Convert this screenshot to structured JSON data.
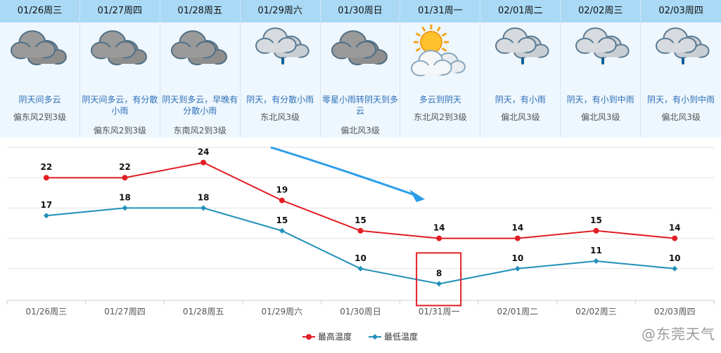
{
  "forecast": [
    {
      "date": "01/26周三",
      "desc": "阴天间多云",
      "wind": "偏东风2到3级",
      "icon": "cloudy-icon"
    },
    {
      "date": "01/27周四",
      "desc": "阴天间多云，有分散小雨",
      "wind": "偏东风2到3级",
      "icon": "cloudy-icon"
    },
    {
      "date": "01/28周五",
      "desc": "阴天到多云，早晚有分散小雨",
      "wind": "东南风2到3级",
      "icon": "cloudy-icon"
    },
    {
      "date": "01/29周六",
      "desc": "阴天，有分散小雨",
      "wind": "东北风3级",
      "icon": "light-rain-icon"
    },
    {
      "date": "01/30周日",
      "desc": "零星小雨转阴天到多云",
      "wind": "偏北风3级",
      "icon": "cloudy-icon"
    },
    {
      "date": "01/31周一",
      "desc": "多云到阴天",
      "wind": "东北风2到3级",
      "icon": "partly-sunny-icon"
    },
    {
      "date": "02/01周二",
      "desc": "阴天，有小雨",
      "wind": "偏北风3级",
      "icon": "light-rain-icon"
    },
    {
      "date": "02/02周三",
      "desc": "阴天，有小到中雨",
      "wind": "偏北风3级",
      "icon": "light-rain-icon"
    },
    {
      "date": "02/03周四",
      "desc": "阴天，有小到中雨",
      "wind": "偏北风3级",
      "icon": "light-rain-icon"
    }
  ],
  "chart_data": {
    "type": "line",
    "categories": [
      "01/26周三",
      "01/27周四",
      "01/28周五",
      "01/29周六",
      "01/30周日",
      "01/31周一",
      "02/01周二",
      "02/02周三",
      "02/03周四"
    ],
    "series": [
      {
        "name": "最高温度",
        "color": "#e11e24",
        "values": [
          22,
          22,
          24,
          19,
          15,
          14,
          14,
          15,
          14
        ]
      },
      {
        "name": "最低温度",
        "color": "#2190b8",
        "values": [
          17,
          18,
          18,
          15,
          10,
          8,
          10,
          11,
          10
        ]
      }
    ],
    "ylim": [
      6,
      26
    ],
    "grid": true,
    "legend": "bottom",
    "highlight_category": "01/31周一",
    "highlight_color": "#e11e24",
    "arrow_color": "#2a9de8"
  },
  "watermark": "@东莞天气"
}
